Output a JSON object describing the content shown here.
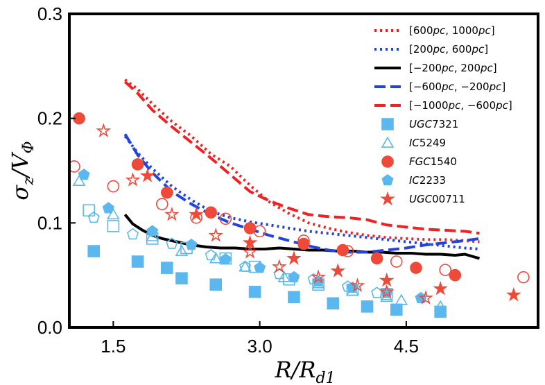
{
  "chart_data": {
    "type": "scatter",
    "xlabel": "R/R_d1",
    "ylabel": "σ_z/V_Φ",
    "xlim": [
      1.05,
      5.85
    ],
    "ylim": [
      0.0,
      0.3
    ],
    "xticks": [
      1.5,
      3.0,
      4.5
    ],
    "xtick_labels": [
      "1.5",
      "3.0",
      "4.5"
    ],
    "yticks": [
      0.0,
      0.1,
      0.2,
      0.3
    ],
    "ytick_labels": [
      "0.0",
      "0.1",
      "0.2",
      "0.3"
    ],
    "grid": false,
    "legend_position": "top-right",
    "lines": [
      {
        "name": "[600pc, 1000pc]",
        "color": "#ee2222",
        "style": "dotted",
        "x": [
          1.62,
          1.75,
          1.9,
          2.1,
          2.3,
          2.5,
          2.7,
          2.9,
          3.1,
          3.3,
          3.5,
          3.7,
          3.9,
          4.1,
          4.3,
          4.5,
          4.7,
          4.9,
          5.1,
          5.25
        ],
        "y": [
          0.237,
          0.228,
          0.214,
          0.197,
          0.183,
          0.166,
          0.154,
          0.136,
          0.12,
          0.109,
          0.1,
          0.095,
          0.091,
          0.088,
          0.086,
          0.085,
          0.084,
          0.084,
          0.083,
          0.082
        ]
      },
      {
        "name": "[200pc, 600pc]",
        "color": "#2244dd",
        "style": "dotted",
        "x": [
          1.62,
          1.75,
          1.9,
          2.1,
          2.3,
          2.5,
          2.7,
          2.9,
          3.1,
          3.3,
          3.5,
          3.7,
          3.9,
          4.1,
          4.3,
          4.5,
          4.7,
          4.9,
          5.1,
          5.25
        ],
        "y": [
          0.183,
          0.167,
          0.152,
          0.135,
          0.122,
          0.111,
          0.105,
          0.101,
          0.098,
          0.095,
          0.092,
          0.09,
          0.088,
          0.086,
          0.084,
          0.082,
          0.08,
          0.078,
          0.076,
          0.075
        ]
      },
      {
        "name": "[−200pc, 200pc]",
        "color": "#000000",
        "style": "solid",
        "x": [
          1.62,
          1.7,
          1.8,
          1.9,
          2.0,
          2.15,
          2.3,
          2.45,
          2.6,
          2.75,
          2.9,
          3.05,
          3.2,
          3.35,
          3.5,
          3.65,
          3.8,
          3.95,
          4.1,
          4.25,
          4.4,
          4.55,
          4.7,
          4.85,
          5.0,
          5.1,
          5.25
        ],
        "y": [
          0.108,
          0.099,
          0.093,
          0.088,
          0.085,
          0.082,
          0.079,
          0.077,
          0.076,
          0.076,
          0.075,
          0.075,
          0.076,
          0.075,
          0.074,
          0.074,
          0.073,
          0.073,
          0.072,
          0.072,
          0.071,
          0.071,
          0.07,
          0.07,
          0.069,
          0.07,
          0.066
        ]
      },
      {
        "name": "[−600pc, −200pc]",
        "color": "#2244dd",
        "style": "dashed",
        "x": [
          1.62,
          1.75,
          1.9,
          2.1,
          2.3,
          2.5,
          2.7,
          2.9,
          3.1,
          3.3,
          3.5,
          3.7,
          3.9,
          4.1,
          4.3,
          4.5,
          4.7,
          4.9,
          5.1,
          5.25
        ],
        "y": [
          0.185,
          0.165,
          0.148,
          0.13,
          0.118,
          0.108,
          0.1,
          0.094,
          0.088,
          0.083,
          0.078,
          0.074,
          0.072,
          0.072,
          0.074,
          0.076,
          0.079,
          0.081,
          0.083,
          0.085
        ]
      },
      {
        "name": "[−1000pc, −600pc]",
        "color": "#ee2222",
        "style": "dashed",
        "x": [
          1.62,
          1.75,
          1.9,
          2.1,
          2.3,
          2.5,
          2.7,
          2.9,
          3.1,
          3.3,
          3.5,
          3.7,
          3.9,
          4.1,
          4.3,
          4.5,
          4.7,
          4.9,
          5.1,
          5.25
        ],
        "y": [
          0.235,
          0.224,
          0.208,
          0.192,
          0.177,
          0.162,
          0.146,
          0.13,
          0.121,
          0.114,
          0.108,
          0.106,
          0.105,
          0.103,
          0.098,
          0.096,
          0.094,
          0.093,
          0.092,
          0.09
        ]
      }
    ],
    "scatter": [
      {
        "name": "UGC7321",
        "color": "#5bb8ee",
        "marker": "square",
        "filled": [
          [
            1.3,
            0.073
          ],
          [
            1.75,
            0.063
          ],
          [
            2.05,
            0.057
          ],
          [
            2.2,
            0.047
          ],
          [
            2.55,
            0.041
          ],
          [
            2.95,
            0.034
          ],
          [
            3.35,
            0.029
          ],
          [
            3.75,
            0.023
          ],
          [
            4.1,
            0.02
          ],
          [
            4.4,
            0.017
          ],
          [
            4.85,
            0.015
          ]
        ],
        "open": [
          [
            1.25,
            0.112
          ],
          [
            1.5,
            0.097
          ],
          [
            1.9,
            0.085
          ],
          [
            2.25,
            0.076
          ],
          [
            2.65,
            0.066
          ],
          [
            2.95,
            0.058
          ],
          [
            3.3,
            0.046
          ],
          [
            3.6,
            0.041
          ],
          [
            3.95,
            0.036
          ],
          [
            4.3,
            0.032
          ]
        ]
      },
      {
        "name": "IC5249",
        "color": "#5bb8ee",
        "marker": "triangle",
        "filled": [],
        "open": [
          [
            1.15,
            0.14
          ],
          [
            1.5,
            0.108
          ],
          [
            1.9,
            0.087
          ],
          [
            2.2,
            0.073
          ],
          [
            2.55,
            0.066
          ],
          [
            2.85,
            0.058
          ],
          [
            3.25,
            0.048
          ],
          [
            3.6,
            0.042
          ],
          [
            3.95,
            0.035
          ],
          [
            4.3,
            0.029
          ],
          [
            4.45,
            0.026
          ],
          [
            4.85,
            0.02
          ]
        ]
      },
      {
        "name": "FGC1540",
        "color": "#ee4a3a",
        "marker": "circle",
        "filled": [
          [
            1.15,
            0.2
          ],
          [
            1.75,
            0.156
          ],
          [
            2.05,
            0.129
          ],
          [
            2.5,
            0.11
          ],
          [
            2.9,
            0.095
          ],
          [
            3.45,
            0.08
          ],
          [
            3.85,
            0.074
          ],
          [
            4.2,
            0.066
          ],
          [
            4.6,
            0.057
          ],
          [
            5.0,
            0.05
          ]
        ],
        "open": [
          [
            1.1,
            0.154
          ],
          [
            1.5,
            0.135
          ],
          [
            2.0,
            0.118
          ],
          [
            2.35,
            0.105
          ],
          [
            2.65,
            0.104
          ],
          [
            3.0,
            0.092
          ],
          [
            3.45,
            0.083
          ],
          [
            3.9,
            0.073
          ],
          [
            4.4,
            0.063
          ],
          [
            4.9,
            0.055
          ],
          [
            5.7,
            0.048
          ]
        ]
      },
      {
        "name": "IC2233",
        "color": "#5bb8ee",
        "marker": "pentagon",
        "filled": [
          [
            1.2,
            0.146
          ],
          [
            1.45,
            0.114
          ],
          [
            1.9,
            0.092
          ],
          [
            2.3,
            0.079
          ],
          [
            2.65,
            0.065
          ],
          [
            3.0,
            0.057
          ],
          [
            3.35,
            0.048
          ],
          [
            3.6,
            0.044
          ],
          [
            3.95,
            0.038
          ],
          [
            4.3,
            0.033
          ],
          [
            4.65,
            0.028
          ]
        ],
        "open": [
          [
            1.3,
            0.105
          ],
          [
            1.7,
            0.089
          ],
          [
            2.1,
            0.08
          ],
          [
            2.5,
            0.069
          ],
          [
            2.85,
            0.058
          ],
          [
            3.2,
            0.051
          ],
          [
            3.55,
            0.046
          ],
          [
            3.9,
            0.039
          ],
          [
            4.2,
            0.033
          ]
        ]
      },
      {
        "name": "UGC00711",
        "color": "#ee4a3a",
        "marker": "star",
        "filled": [
          [
            1.85,
            0.145
          ],
          [
            2.35,
            0.108
          ],
          [
            2.9,
            0.081
          ],
          [
            3.35,
            0.066
          ],
          [
            3.8,
            0.054
          ],
          [
            4.3,
            0.045
          ],
          [
            4.85,
            0.037
          ],
          [
            5.6,
            0.031
          ]
        ],
        "open": [
          [
            1.4,
            0.188
          ],
          [
            1.7,
            0.141
          ],
          [
            2.1,
            0.108
          ],
          [
            2.55,
            0.088
          ],
          [
            2.9,
            0.072
          ],
          [
            3.2,
            0.058
          ],
          [
            3.6,
            0.048
          ],
          [
            4.0,
            0.04
          ],
          [
            4.3,
            0.034
          ],
          [
            4.7,
            0.028
          ]
        ]
      }
    ]
  }
}
